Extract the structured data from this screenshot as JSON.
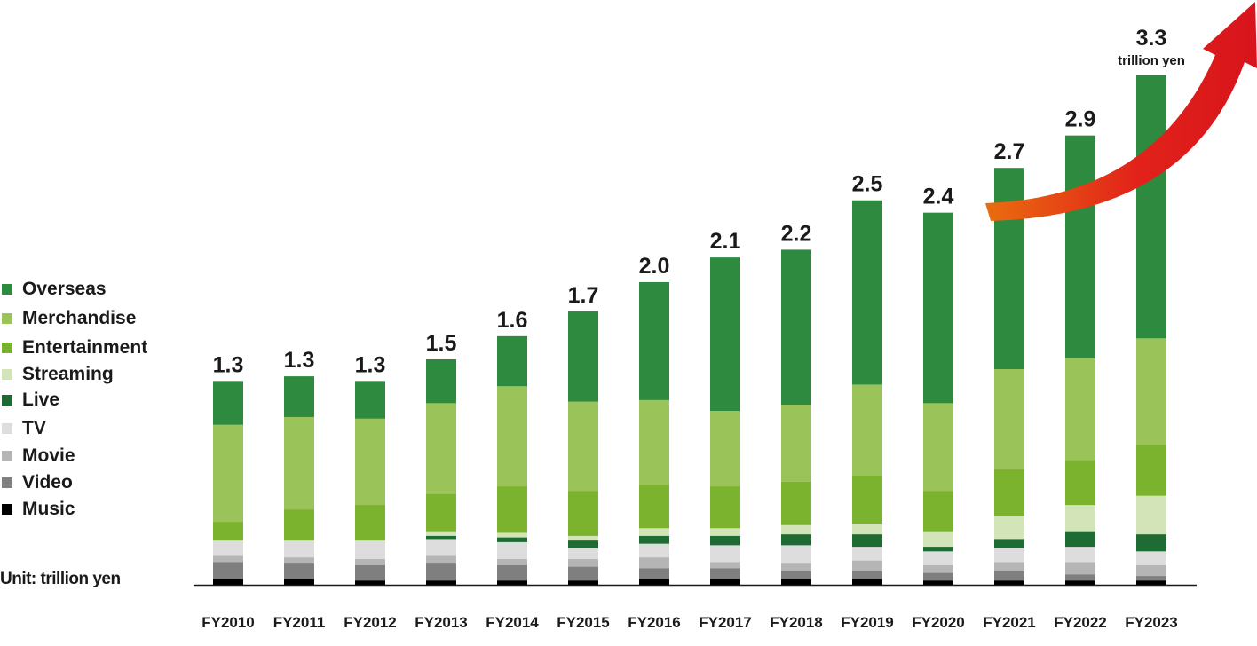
{
  "chart_data": {
    "type": "bar",
    "stacked": true,
    "unit_label": "Unit: trillion yen",
    "categories": [
      "FY2010",
      "FY2011",
      "FY2012",
      "FY2013",
      "FY2014",
      "FY2015",
      "FY2016",
      "FY2017",
      "FY2018",
      "FY2019",
      "FY2020",
      "FY2021",
      "FY2022",
      "FY2023"
    ],
    "totals": [
      "1.3",
      "1.3",
      "1.3",
      "1.5",
      "1.6",
      "1.7",
      "2.0",
      "2.1",
      "2.2",
      "2.5",
      "2.4",
      "2.7",
      "2.9",
      "3.3"
    ],
    "last_total_unit": "trillion yen",
    "ylim": [
      0,
      3.3
    ],
    "series": [
      {
        "name": "Music",
        "color": "#000000",
        "values": [
          0.04,
          0.04,
          0.03,
          0.03,
          0.03,
          0.03,
          0.04,
          0.04,
          0.04,
          0.04,
          0.03,
          0.03,
          0.03,
          0.03
        ]
      },
      {
        "name": "Video",
        "color": "#7f7f7f",
        "values": [
          0.11,
          0.1,
          0.1,
          0.11,
          0.1,
          0.09,
          0.07,
          0.07,
          0.05,
          0.05,
          0.05,
          0.06,
          0.04,
          0.03
        ]
      },
      {
        "name": "Movie",
        "color": "#b5b5b5",
        "values": [
          0.04,
          0.04,
          0.04,
          0.05,
          0.04,
          0.05,
          0.07,
          0.04,
          0.05,
          0.07,
          0.05,
          0.06,
          0.08,
          0.07
        ]
      },
      {
        "name": "TV",
        "color": "#dddddd",
        "values": [
          0.1,
          0.11,
          0.12,
          0.11,
          0.11,
          0.07,
          0.09,
          0.11,
          0.12,
          0.09,
          0.09,
          0.09,
          0.1,
          0.09
        ]
      },
      {
        "name": "Live",
        "color": "#1f6b34",
        "values": [
          0.0,
          0.0,
          0.0,
          0.02,
          0.03,
          0.05,
          0.05,
          0.06,
          0.07,
          0.08,
          0.03,
          0.06,
          0.1,
          0.11
        ]
      },
      {
        "name": "Streaming",
        "color": "#d3e4b9",
        "values": [
          0.0,
          0.0,
          0.0,
          0.03,
          0.03,
          0.03,
          0.05,
          0.05,
          0.06,
          0.07,
          0.1,
          0.15,
          0.17,
          0.25
        ]
      },
      {
        "name": "Entertainment",
        "color": "#7bb32e",
        "values": [
          0.12,
          0.2,
          0.23,
          0.24,
          0.3,
          0.29,
          0.28,
          0.27,
          0.28,
          0.31,
          0.26,
          0.3,
          0.29,
          0.33
        ]
      },
      {
        "name": "Merchandise",
        "color": "#9ac45a",
        "values": [
          0.63,
          0.6,
          0.56,
          0.59,
          0.65,
          0.58,
          0.55,
          0.49,
          0.5,
          0.59,
          0.57,
          0.65,
          0.66,
          0.69
        ]
      },
      {
        "name": "Overseas",
        "color": "#2e8a3f",
        "values": [
          0.28,
          0.26,
          0.24,
          0.28,
          0.32,
          0.58,
          0.76,
          0.99,
          1.0,
          1.19,
          1.23,
          1.3,
          1.44,
          1.7
        ]
      }
    ],
    "legend_position": "left",
    "grid": false,
    "annotation": "red growth arrow rising from FY2021 to above FY2023"
  }
}
